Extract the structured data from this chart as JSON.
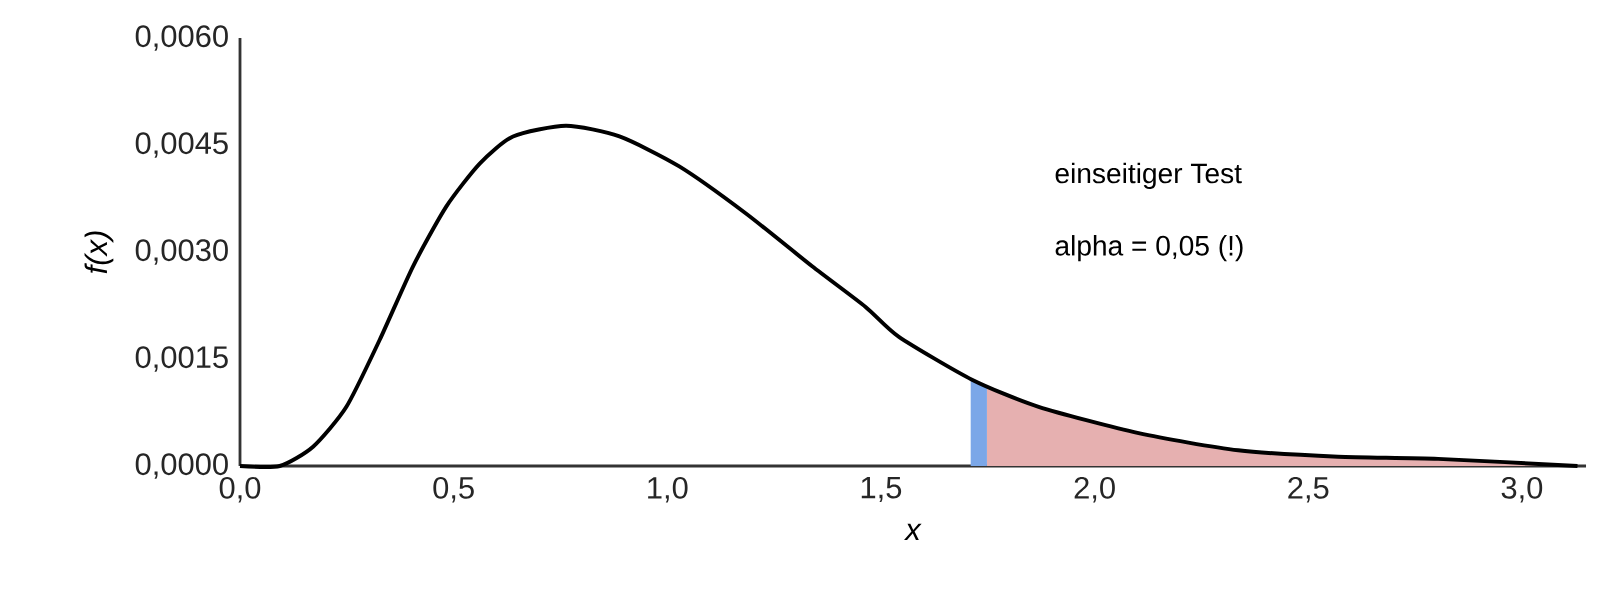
{
  "chart_data": {
    "type": "line",
    "xlabel": "x",
    "ylabel": "f(x)",
    "annotations": [
      "einseitiger Test",
      "alpha = 0,05 (!)"
    ],
    "xlim": [
      0,
      3.15
    ],
    "ylim": [
      0,
      0.006
    ],
    "xticks": [
      {
        "value": 0,
        "label": "0,0"
      },
      {
        "value": 0.5,
        "label": "0,5"
      },
      {
        "value": 1,
        "label": "1,0"
      },
      {
        "value": 1.5,
        "label": "1,5"
      },
      {
        "value": 2,
        "label": "2,0"
      },
      {
        "value": 2.5,
        "label": "2,5"
      },
      {
        "value": 3,
        "label": "3,0"
      }
    ],
    "yticks": [
      {
        "value": 0,
        "label": "0,0000"
      },
      {
        "value": 0.0015,
        "label": "0,0015"
      },
      {
        "value": 0.003,
        "label": "0,0030"
      },
      {
        "value": 0.0045,
        "label": "0,0045"
      },
      {
        "value": 0.006,
        "label": "0,0060"
      }
    ],
    "grid": false,
    "marker": "none",
    "series": [
      {
        "type": "area",
        "color": "#e6b0b0",
        "x": [
          1.748,
          1.869,
          2.103,
          2.336,
          2.57,
          2.804,
          3.13
        ],
        "values": [
          0.00112,
          0.00083,
          0.00046,
          0.00022,
          0.00013,
          0.0001,
          0
        ]
      },
      {
        "type": "area",
        "color": "#7ba7e8",
        "x": [
          1.71,
          1.748
        ],
        "values": [
          0.00122,
          0.00112
        ]
      },
      {
        "color": "#000000",
        "line_style": "solid",
        "x": [
          0,
          0.093,
          0.171,
          0.249,
          0.327,
          0.405,
          0.483,
          0.561,
          0.639,
          0.763,
          0.888,
          1.028,
          1.184,
          1.339,
          1.464,
          1.542,
          1.713,
          1.869,
          2.103,
          2.336,
          2.57,
          2.804,
          3.13
        ],
        "values": [
          0,
          0,
          0.00027,
          0.00083,
          0.00177,
          0.0028,
          0.00364,
          0.00424,
          0.00462,
          0.00477,
          0.00462,
          0.0042,
          0.00354,
          0.0028,
          0.00223,
          0.00181,
          0.00121,
          0.00083,
          0.00046,
          0.00022,
          0.00013,
          0.0001,
          0
        ]
      }
    ]
  }
}
